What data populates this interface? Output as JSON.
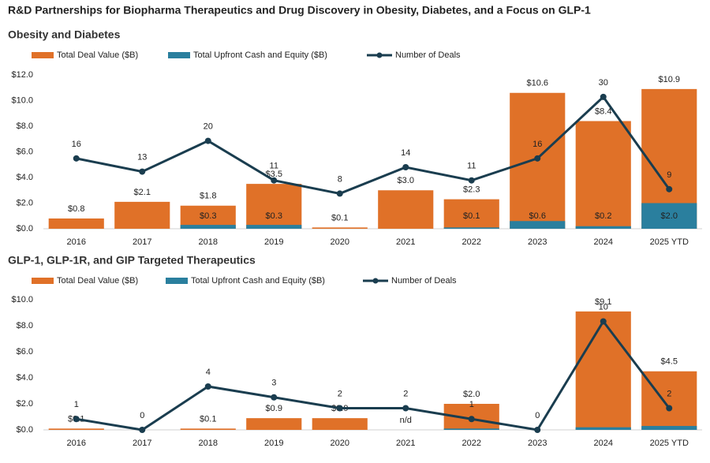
{
  "title": "R&D Partnerships for Biopharma Therapeutics and Drug Discovery in Obesity, Diabetes, and a Focus on GLP-1",
  "chart_data": [
    {
      "type": "bar",
      "title": "Obesity and Diabetes",
      "categories": [
        "2016",
        "2017",
        "2018",
        "2019",
        "2020",
        "2021",
        "2022",
        "2023",
        "2024",
        "2025 YTD"
      ],
      "ylim": [
        0,
        12
      ],
      "yticks": [
        {
          "value": 0,
          "label": "$0.0"
        },
        {
          "value": 2,
          "label": "$2.0"
        },
        {
          "value": 4,
          "label": "$4.0"
        },
        {
          "value": 6,
          "label": "$6.0"
        },
        {
          "value": 8,
          "label": "$8.0"
        },
        {
          "value": 10,
          "label": "$10.0"
        },
        {
          "value": 12,
          "label": "$12.0"
        }
      ],
      "y2lim": [
        0,
        35
      ],
      "legend": "top",
      "series": [
        {
          "name": "Total Deal Value ($B)",
          "type": "bar",
          "color": "#e07128",
          "values": [
            0.8,
            2.1,
            1.8,
            3.5,
            0.1,
            3.0,
            2.3,
            10.6,
            8.4,
            10.9
          ],
          "value_labels": [
            "$0.8",
            "$2.1",
            "$1.8",
            "$3.5",
            "$0.1",
            "$3.0",
            "$2.3",
            "$10.6",
            "$8.4",
            "$10.9"
          ]
        },
        {
          "name": "Total Upfront Cash and Equity ($B)",
          "type": "bar",
          "color": "#2a7f9e",
          "values": [
            null,
            null,
            0.3,
            0.3,
            null,
            null,
            0.1,
            0.6,
            0.2,
            2.0
          ],
          "value_labels": [
            null,
            null,
            "$0.3",
            "$0.3",
            null,
            null,
            "$0.1",
            "$0.6",
            "$0.2",
            "$2.0"
          ]
        },
        {
          "name": "Number of Deals",
          "type": "line",
          "axis": "y2",
          "color": "#1a3d4f",
          "values": [
            16,
            13,
            20,
            11,
            8,
            14,
            11,
            16,
            30,
            9
          ]
        }
      ]
    },
    {
      "type": "bar",
      "title": "GLP-1, GLP-1R, and GIP Targeted Therapeutics",
      "categories": [
        "2016",
        "2017",
        "2018",
        "2019",
        "2020",
        "2021",
        "2022",
        "2023",
        "2024",
        "2025 YTD"
      ],
      "ylim": [
        0,
        10
      ],
      "yticks": [
        {
          "value": 0,
          "label": "$0.0"
        },
        {
          "value": 2,
          "label": "$2.0"
        },
        {
          "value": 4,
          "label": "$4.0"
        },
        {
          "value": 6,
          "label": "$6.0"
        },
        {
          "value": 8,
          "label": "$8.0"
        },
        {
          "value": 10,
          "label": "$10.0"
        }
      ],
      "y2lim": [
        0,
        12
      ],
      "legend": "top",
      "series": [
        {
          "name": "Total Deal Value ($B)",
          "type": "bar",
          "color": "#e07128",
          "values": [
            0.1,
            null,
            0.1,
            0.9,
            0.9,
            null,
            2.0,
            null,
            9.1,
            4.5
          ],
          "value_labels": [
            "$0.1",
            null,
            "$0.1",
            "$0.9",
            "$0.9",
            "n/d",
            "$2.0",
            null,
            "$9.1",
            "$4.5"
          ]
        },
        {
          "name": "Total Upfront Cash and Equity ($B)",
          "type": "bar",
          "color": "#2a7f9e",
          "values": [
            null,
            null,
            null,
            null,
            null,
            null,
            0.1,
            null,
            0.2,
            0.3
          ]
        },
        {
          "name": "Number of Deals",
          "type": "line",
          "axis": "y2",
          "color": "#1a3d4f",
          "values": [
            1,
            0,
            4,
            3,
            2,
            2,
            1,
            0,
            10,
            2
          ]
        }
      ]
    }
  ]
}
